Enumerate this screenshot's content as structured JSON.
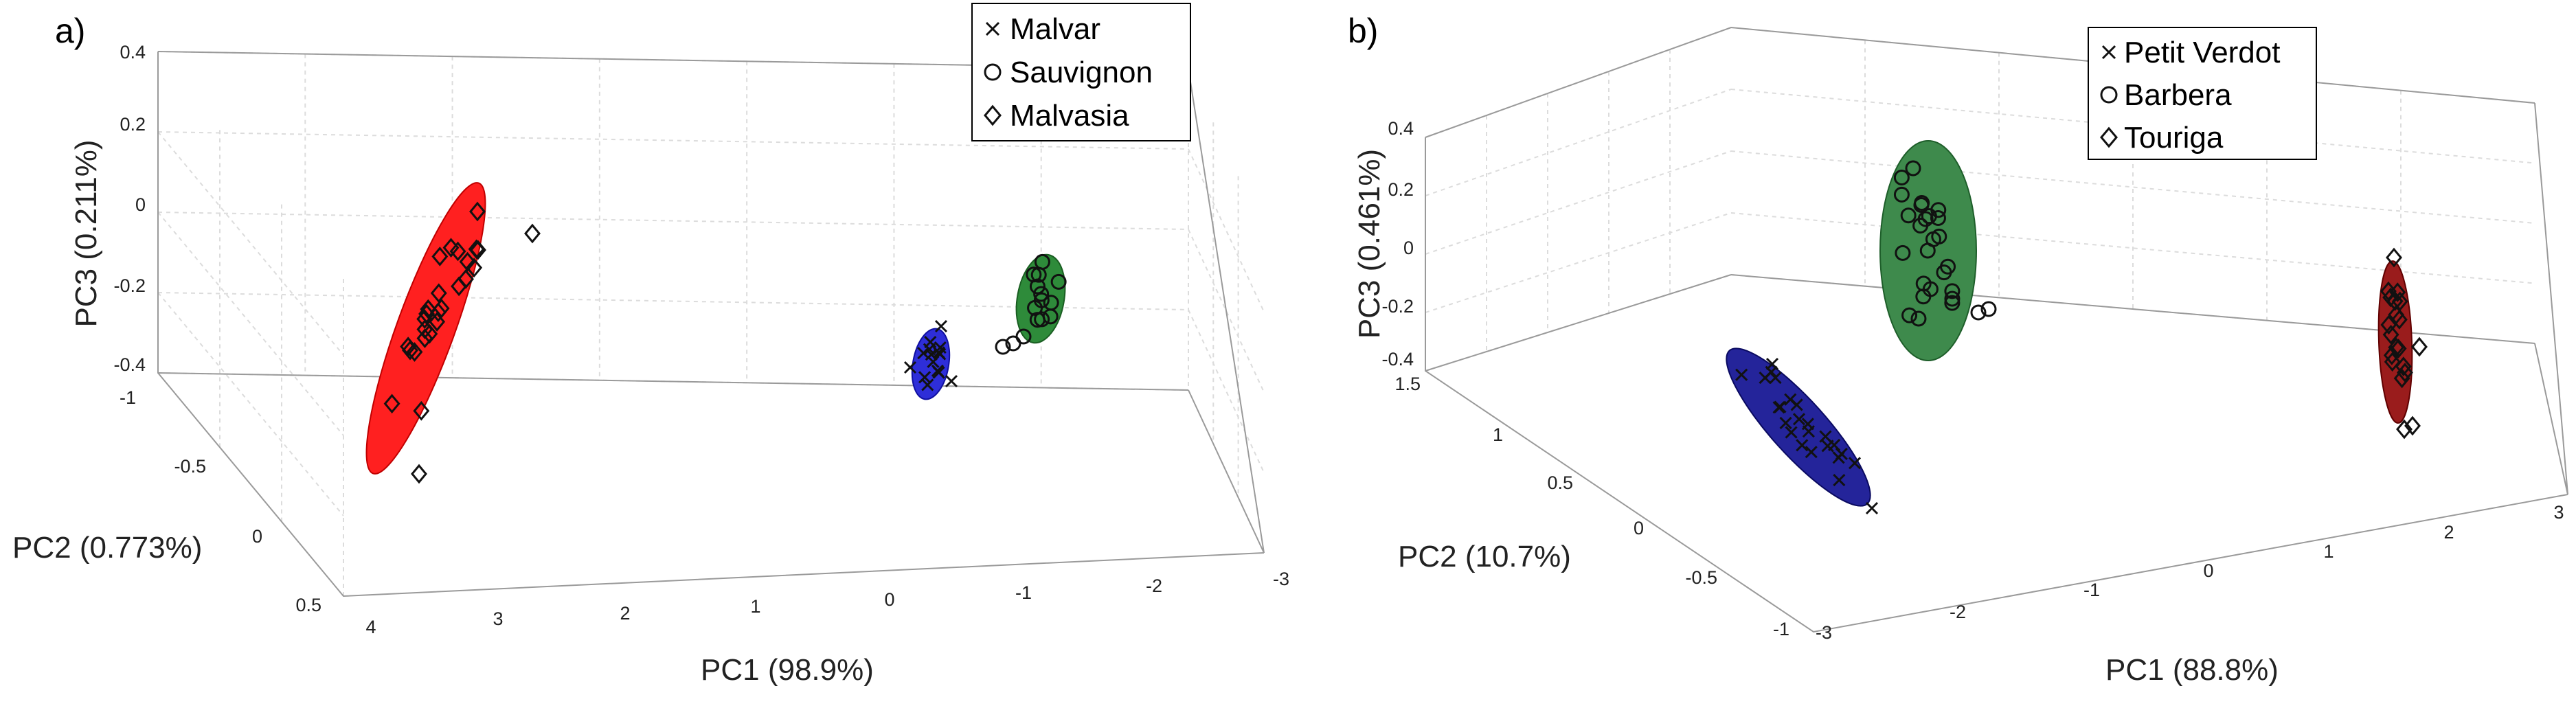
{
  "chart_data": [
    {
      "type": "scatter",
      "panel_label": "a)",
      "title": "",
      "xlabel": "PC1 (98.9%)",
      "ylabel": "PC2 (0.773%)",
      "zlabel": "PC3 (0.211%)",
      "xlim": [
        -3,
        4
      ],
      "ylim": [
        -1,
        0.5
      ],
      "zlim": [
        -0.4,
        0.4
      ],
      "x_ticks": [
        "4",
        "3",
        "2",
        "1",
        "0",
        "-1",
        "-2",
        "-3"
      ],
      "y_ticks": [
        "-1",
        "-0.5",
        "0",
        "0.5"
      ],
      "z_ticks": [
        "-0.4",
        "-0.2",
        "0",
        "0.2",
        "0.4"
      ],
      "legend_position": "top-right",
      "series": [
        {
          "name": "Malvar",
          "marker": "x",
          "color": "#0000ff",
          "center": [
            -0.3,
            -0.25,
            -0.3
          ]
        },
        {
          "name": "Sauvignon",
          "marker": "o",
          "color": "#006400",
          "center": [
            -1.4,
            -0.6,
            -0.25
          ]
        },
        {
          "name": "Malvasia",
          "marker": "diamond",
          "color": "#ff0000",
          "center": [
            3.3,
            0.0,
            -0.25
          ]
        }
      ]
    },
    {
      "type": "scatter",
      "panel_label": "b)",
      "title": "",
      "xlabel": "PC1 (88.8%)",
      "ylabel": "PC2 (10.7%)",
      "zlabel": "PC3 (0.461%)",
      "xlim": [
        -3,
        3
      ],
      "ylim": [
        -1,
        1.5
      ],
      "zlim": [
        -0.4,
        0.4
      ],
      "x_ticks": [
        "-3",
        "-2",
        "-1",
        "0",
        "1",
        "2",
        "3"
      ],
      "y_ticks": [
        "-1",
        "-0.5",
        "0",
        "0.5",
        "1",
        "1.5"
      ],
      "z_ticks": [
        "-0.4",
        "-0.2",
        "0",
        "0.2",
        "0.4"
      ],
      "legend_position": "top-right",
      "series": [
        {
          "name": "Petit Verdot",
          "marker": "x",
          "color": "#0000a0",
          "center": [
            -2.2,
            -0.5,
            -0.3
          ]
        },
        {
          "name": "Barbera",
          "marker": "o",
          "color": "#1e7a34",
          "center": [
            -1.0,
            0.8,
            0.05
          ]
        },
        {
          "name": "Touriga",
          "marker": "diamond",
          "color": "#b01010",
          "center": [
            2.3,
            0.6,
            -0.1
          ]
        }
      ]
    }
  ]
}
